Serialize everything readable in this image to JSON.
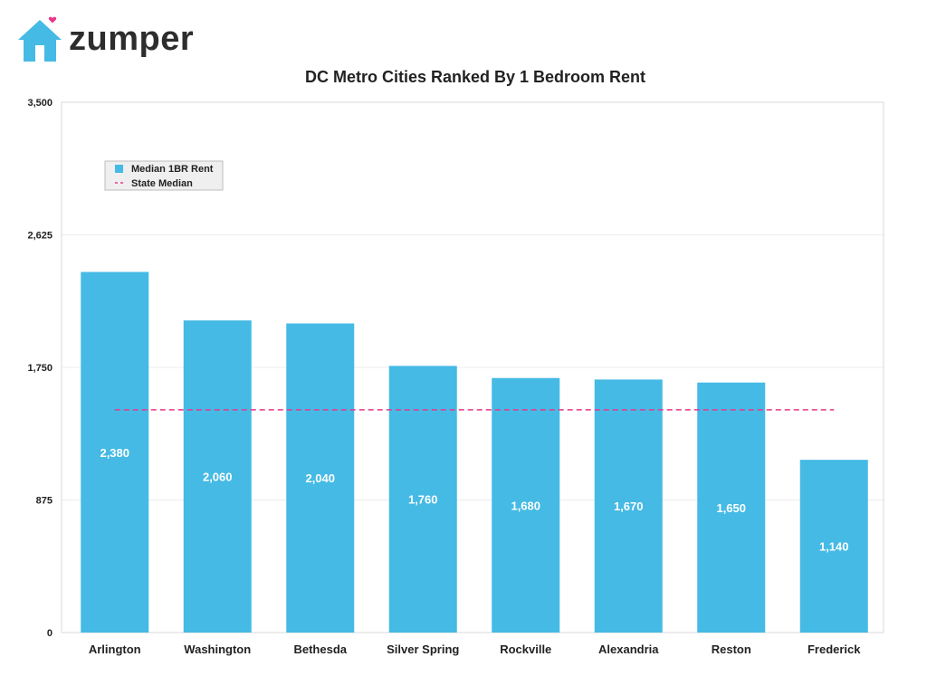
{
  "brand": {
    "name": "zumper",
    "logo_icon": "house-heart-icon",
    "logo_color": "#45BAE5",
    "heart_color": "#E8388A"
  },
  "chart_data": {
    "type": "bar",
    "title": "DC Metro Cities Ranked By 1 Bedroom Rent",
    "categories": [
      "Arlington",
      "Washington",
      "Bethesda",
      "Silver Spring",
      "Rockville",
      "Alexandria",
      "Reston",
      "Frederick"
    ],
    "series": [
      {
        "name": "Median 1BR Rent",
        "values": [
          2380,
          2060,
          2040,
          1760,
          1680,
          1670,
          1650,
          1140
        ],
        "value_labels": [
          "2,380",
          "2,060",
          "2,040",
          "1,760",
          "1,680",
          "1,670",
          "1,650",
          "1,140"
        ],
        "color": "#45BAE5"
      }
    ],
    "reference_line": {
      "name": "State Median",
      "value": 1470,
      "color": "#E8388A",
      "style": "dashed"
    },
    "ylim": [
      0,
      3500
    ],
    "yticks": [
      0,
      875,
      1750,
      2625,
      3500
    ],
    "ytick_labels": [
      "0",
      "875",
      "1,750",
      "2,625",
      "3,500"
    ],
    "grid": true,
    "legend_position": "top-left"
  }
}
